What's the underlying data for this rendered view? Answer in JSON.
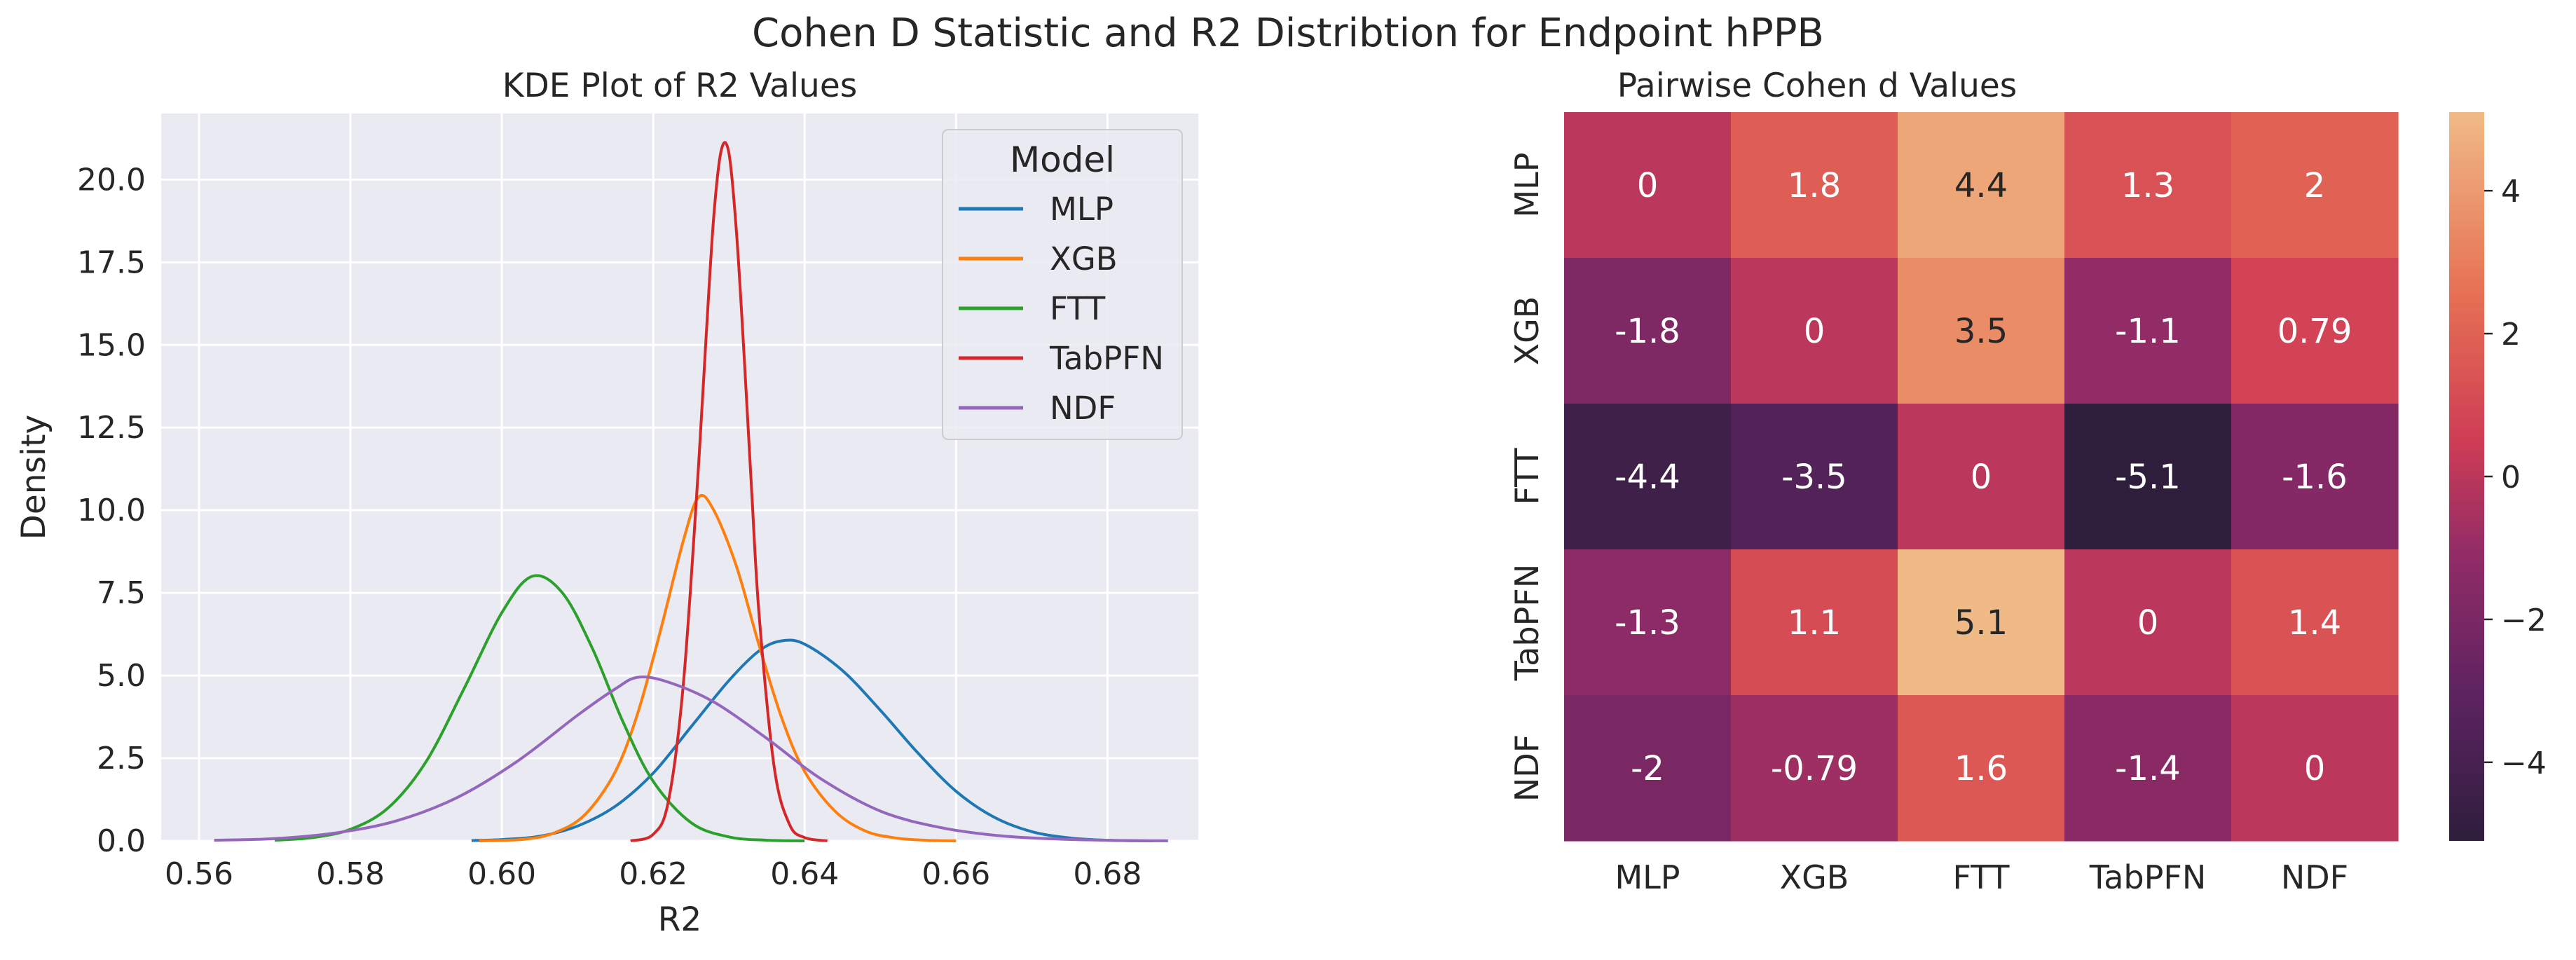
{
  "figure": {
    "title": "Cohen D Statistic and R2 Distribtion for Endpoint hPPB"
  },
  "chart_data": [
    {
      "type": "line",
      "title": "KDE Plot of R2 Values",
      "xlabel": "R2",
      "ylabel": "Density",
      "xlim": [
        0.555,
        0.692
      ],
      "ylim": [
        0,
        22.0
      ],
      "xticks": [
        0.56,
        0.58,
        0.6,
        0.62,
        0.64,
        0.66,
        0.68
      ],
      "xtick_labels": [
        "0.56",
        "0.58",
        "0.60",
        "0.62",
        "0.64",
        "0.66",
        "0.68"
      ],
      "yticks": [
        0,
        2.5,
        5,
        7.5,
        10,
        12.5,
        15,
        17.5,
        20
      ],
      "ytick_labels": [
        "0.0",
        "2.5",
        "5.0",
        "7.5",
        "10.0",
        "12.5",
        "15.0",
        "17.5",
        "20.0"
      ],
      "grid": true,
      "background": "#eaeaf2",
      "legend": {
        "title": "Model",
        "position": "top-right"
      },
      "series": [
        {
          "name": "MLP",
          "color": "#1f77b4",
          "x": [
            0.596,
            0.6,
            0.605,
            0.61,
            0.615,
            0.62,
            0.625,
            0.63,
            0.634,
            0.637,
            0.64,
            0.645,
            0.65,
            0.655,
            0.66,
            0.665,
            0.67,
            0.675,
            0.68,
            0.686
          ],
          "y": [
            0.01,
            0.04,
            0.14,
            0.45,
            1.05,
            2.05,
            3.45,
            4.85,
            5.75,
            6.05,
            5.95,
            5.15,
            3.95,
            2.65,
            1.5,
            0.72,
            0.28,
            0.09,
            0.02,
            0.0
          ]
        },
        {
          "name": "XGB",
          "color": "#ff7f0e",
          "x": [
            0.597,
            0.603,
            0.607,
            0.611,
            0.615,
            0.618,
            0.621,
            0.624,
            0.626,
            0.628,
            0.631,
            0.634,
            0.637,
            0.64,
            0.644,
            0.648,
            0.652,
            0.656,
            0.66
          ],
          "y": [
            0.0,
            0.05,
            0.25,
            0.8,
            2.1,
            3.9,
            6.4,
            9.1,
            10.4,
            10.0,
            8.3,
            5.9,
            3.7,
            2.1,
            0.9,
            0.3,
            0.09,
            0.02,
            0.0
          ]
        },
        {
          "name": "FTT",
          "color": "#2ca02c",
          "x": [
            0.57,
            0.575,
            0.58,
            0.585,
            0.59,
            0.595,
            0.6,
            0.604,
            0.608,
            0.612,
            0.616,
            0.62,
            0.625,
            0.63,
            0.635,
            0.64
          ],
          "y": [
            0.02,
            0.1,
            0.35,
            1.0,
            2.4,
            4.6,
            6.9,
            8.0,
            7.5,
            5.8,
            3.6,
            1.8,
            0.55,
            0.12,
            0.02,
            0.0
          ]
        },
        {
          "name": "TabPFN",
          "color": "#d62728",
          "x": [
            0.617,
            0.62,
            0.622,
            0.624,
            0.626,
            0.627,
            0.628,
            0.629,
            0.63,
            0.631,
            0.632,
            0.633,
            0.634,
            0.636,
            0.638,
            0.64,
            0.643
          ],
          "y": [
            0.0,
            0.2,
            1.2,
            4.8,
            11.4,
            15.3,
            18.9,
            20.9,
            20.8,
            18.4,
            14.7,
            10.6,
            6.8,
            2.2,
            0.5,
            0.1,
            0.0
          ]
        },
        {
          "name": "NDF",
          "color": "#9467bd",
          "x": [
            0.562,
            0.57,
            0.578,
            0.586,
            0.594,
            0.602,
            0.61,
            0.615,
            0.618,
            0.622,
            0.628,
            0.635,
            0.642,
            0.65,
            0.658,
            0.666,
            0.674,
            0.682,
            0.688
          ],
          "y": [
            0.02,
            0.07,
            0.24,
            0.6,
            1.3,
            2.4,
            3.8,
            4.6,
            4.95,
            4.8,
            4.2,
            3.1,
            1.9,
            0.9,
            0.4,
            0.15,
            0.05,
            0.01,
            0.0
          ]
        }
      ]
    },
    {
      "type": "heatmap",
      "title": "Pairwise Cohen d Values",
      "rows": [
        "MLP",
        "XGB",
        "FTT",
        "TabPFN",
        "NDF"
      ],
      "cols": [
        "MLP",
        "XGB",
        "FTT",
        "TabPFN",
        "NDF"
      ],
      "values": [
        [
          0,
          1.8,
          4.4,
          1.3,
          2
        ],
        [
          -1.8,
          0,
          3.5,
          -1.1,
          0.79
        ],
        [
          -4.4,
          -3.5,
          0,
          -5.1,
          -1.6
        ],
        [
          -1.3,
          1.1,
          5.1,
          0,
          1.4
        ],
        [
          -2,
          -0.79,
          1.6,
          -1.4,
          0
        ]
      ],
      "labels": [
        [
          "0",
          "1.8",
          "4.4",
          "1.3",
          "2"
        ],
        [
          "-1.8",
          "0",
          "3.5",
          "-1.1",
          "0.79"
        ],
        [
          "-4.4",
          "-3.5",
          "0",
          "-5.1",
          "-1.6"
        ],
        [
          "-1.3",
          "1.1",
          "5.1",
          "0",
          "1.4"
        ],
        [
          "-2",
          "-0.79",
          "1.6",
          "-1.4",
          "0"
        ]
      ],
      "vmin": -5.1,
      "vmax": 5.1,
      "colormap": "flare_r",
      "colorbar": {
        "ticks": [
          -4,
          -2,
          0,
          2,
          4
        ],
        "tick_labels": [
          "−4",
          "−2",
          "0",
          "2",
          "4"
        ]
      }
    }
  ]
}
